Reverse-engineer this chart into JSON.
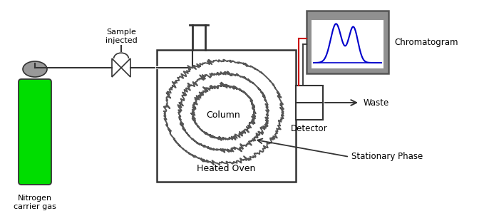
{
  "bg_color": "#ffffff",
  "cylinder_color": "#00dd00",
  "line_color": "#333333",
  "red_line_color": "#cc0000",
  "blue_peak_color": "#0000cc",
  "gray_chrom": "#999999",
  "label_nitrogen": "Nitrogen\ncarrier gas",
  "label_sample": "Sample\ninjected",
  "label_column": "Column",
  "label_oven": "Heated Oven",
  "label_detector": "Detector",
  "label_waste": "Waste",
  "label_chromatogram": "Chromatogram",
  "label_stationary": "Stationary Phase",
  "figw": 6.86,
  "figh": 3.03,
  "dpi": 100
}
